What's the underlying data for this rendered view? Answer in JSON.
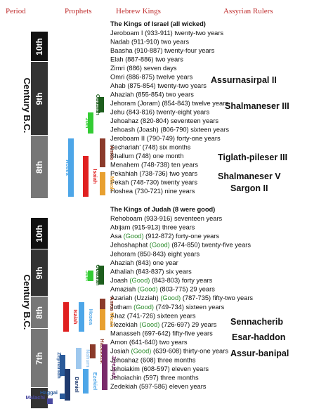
{
  "header": {
    "columns": [
      "Period",
      "Prophets",
      "Hebrew Kings",
      "Assyrian Rulers"
    ]
  },
  "sections": [
    {
      "title": "The Kings of Israel (all wicked)",
      "century_label": "Century B.C.",
      "centuries": [
        "10th",
        "9th",
        "8th"
      ],
      "kings": [
        {
          "name": "Jeroboam I",
          "text": "(933-911) twenty-two years"
        },
        {
          "name": "Nadab",
          "text": "(911-910) two years"
        },
        {
          "name": "Baasha",
          "text": "(910-887) twenty-four years"
        },
        {
          "name": "Elah",
          "text": "(887-886) two years"
        },
        {
          "name": "Zimri",
          "text": "(886) seven days"
        },
        {
          "name": "Omri",
          "text": "(886-875) twelve years"
        },
        {
          "name": "Ahab",
          "text": "(875-854) twenty-two years"
        },
        {
          "name": "Ahaziah",
          "text": "(855-854) two years"
        },
        {
          "name": "Jehoram (Joram)",
          "text": "(854-843) twelve years"
        },
        {
          "name": "Jehu",
          "text": "(843-816) twenty-eight years"
        },
        {
          "name": "Jehoahaz",
          "text": "(820-804) seventeen years"
        },
        {
          "name": "Jehoash (Joash)",
          "text": "(806-790) sixteen years"
        },
        {
          "name": "Jeroboam II",
          "text": "(790-749) forty-one years"
        },
        {
          "name": "Zechariah'",
          "text": "(748) six months"
        },
        {
          "name": "Shallum",
          "text": "(748) one month"
        },
        {
          "name": "Menahem",
          "text": "(748-738) ten years"
        },
        {
          "name": "Pekahiah",
          "text": "(738-736) two years"
        },
        {
          "name": "Pekah",
          "text": "(748-730) twenty years"
        },
        {
          "name": "Hoshea",
          "text": "(730-721) nine years"
        }
      ],
      "prophets": [
        {
          "name": "Obadiah",
          "color": "#1d5e1d"
        },
        {
          "name": "Joel",
          "color": "#33cc33"
        },
        {
          "name": "Hosea",
          "color": "#4da6e8"
        },
        {
          "name": "Isaiah",
          "color": "#e02020"
        },
        {
          "name": "Amos",
          "color": "#8b3a2a"
        },
        {
          "name": "Micah",
          "color": "#e8a030"
        }
      ],
      "rulers": [
        "Assurnasirpal II",
        "Shalmaneser III",
        "Tiglath-pileser III",
        "Shalmaneser V",
        "Sargon II"
      ]
    },
    {
      "title": "The Kings of Judah (8 were good)",
      "century_label": "Century B.C.",
      "centuries": [
        "10th",
        "9th",
        "8th",
        "7th"
      ],
      "kings": [
        {
          "name": "Rehoboam",
          "text": "(933-916) seventeen years"
        },
        {
          "name": "Abijam",
          "text": "(915-913) three years"
        },
        {
          "name": "Asa",
          "note": "(Good)",
          "text": "(912-872) forty-one years"
        },
        {
          "name": "Jehoshaphat",
          "note": "(Good)",
          "text": "(874-850) twenty-five years"
        },
        {
          "name": "Jehoram",
          "text": "(850-843) eight years"
        },
        {
          "name": "Ahaziah",
          "text": "(843) one year"
        },
        {
          "name": "Athaliah",
          "text": "(843-837) six years"
        },
        {
          "name": "Joash",
          "note": "(Good)",
          "text": "(843-803) forty years"
        },
        {
          "name": "Amaziah",
          "note": "(Good)",
          "text": "(803-775) 29 years"
        },
        {
          "name": "Azariah (Uzziah)",
          "note": "(Good)",
          "text": "(787-735) fifty-two years"
        },
        {
          "name": "Jotham",
          "note": "(Good)",
          "text": "(749-734) sixteen years"
        },
        {
          "name": "Ahaz",
          "text": "(741-726) sixteen years"
        },
        {
          "name": "Hezekiah",
          "note": "(Good)",
          "text": "(726-697) 29 years"
        },
        {
          "name": "Manasseh",
          "text": "(697-642) fifty-five years"
        },
        {
          "name": "Amon",
          "text": "(641-640) two years"
        },
        {
          "name": "Josiah",
          "note": "(Good)",
          "text": "(639-608) thirty-one years"
        },
        {
          "name": "Jehoahaz",
          "text": "(608) three months"
        },
        {
          "name": "Jehoiakim",
          "text": "(608-597) eleven years"
        },
        {
          "name": "Jehoiachin",
          "text": "(597) three months"
        },
        {
          "name": "Zedekiah",
          "text": "(597-586) eleven years"
        }
      ],
      "prophets": [
        {
          "name": "Obadiah",
          "color": "#1d5e1d"
        },
        {
          "name": "Joel",
          "color": "#33cc33"
        },
        {
          "name": "Isaiah",
          "color": "#e02020"
        },
        {
          "name": "Hosea",
          "color": "#4da6e8"
        },
        {
          "name": "Amos",
          "color": "#8b3a2a"
        },
        {
          "name": "Micah",
          "color": "#e8a030"
        },
        {
          "name": "Zephaniah",
          "color": "#2a5a9a"
        },
        {
          "name": "Nahum",
          "color": "#9ec8ee"
        },
        {
          "name": "Habakkuk",
          "color": "#8b3a2a"
        },
        {
          "name": "Jeremiah",
          "color": "#7a2a6a"
        },
        {
          "name": "Daniel",
          "color": "#1f3a6e"
        },
        {
          "name": "Ezekiel",
          "color": "#4da6e8"
        },
        {
          "name": "Haggai",
          "color": "#2a5a9a"
        },
        {
          "name": "Malachi",
          "color": "#4a4aa0"
        }
      ],
      "rulers": [
        "Sennacherib",
        "Esar-haddon",
        "Assur-banipal"
      ]
    }
  ]
}
